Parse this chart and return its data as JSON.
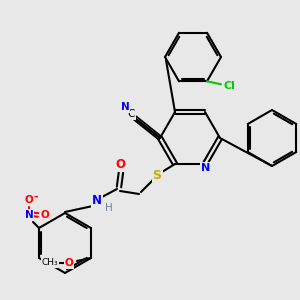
{
  "bg_color": "#e8e8e8",
  "atom_colors": {
    "N": "#0000ff",
    "O": "#ff0000",
    "S": "#ccaa00",
    "Cl": "#00cc00",
    "C": "#000000",
    "H": "#708090"
  }
}
